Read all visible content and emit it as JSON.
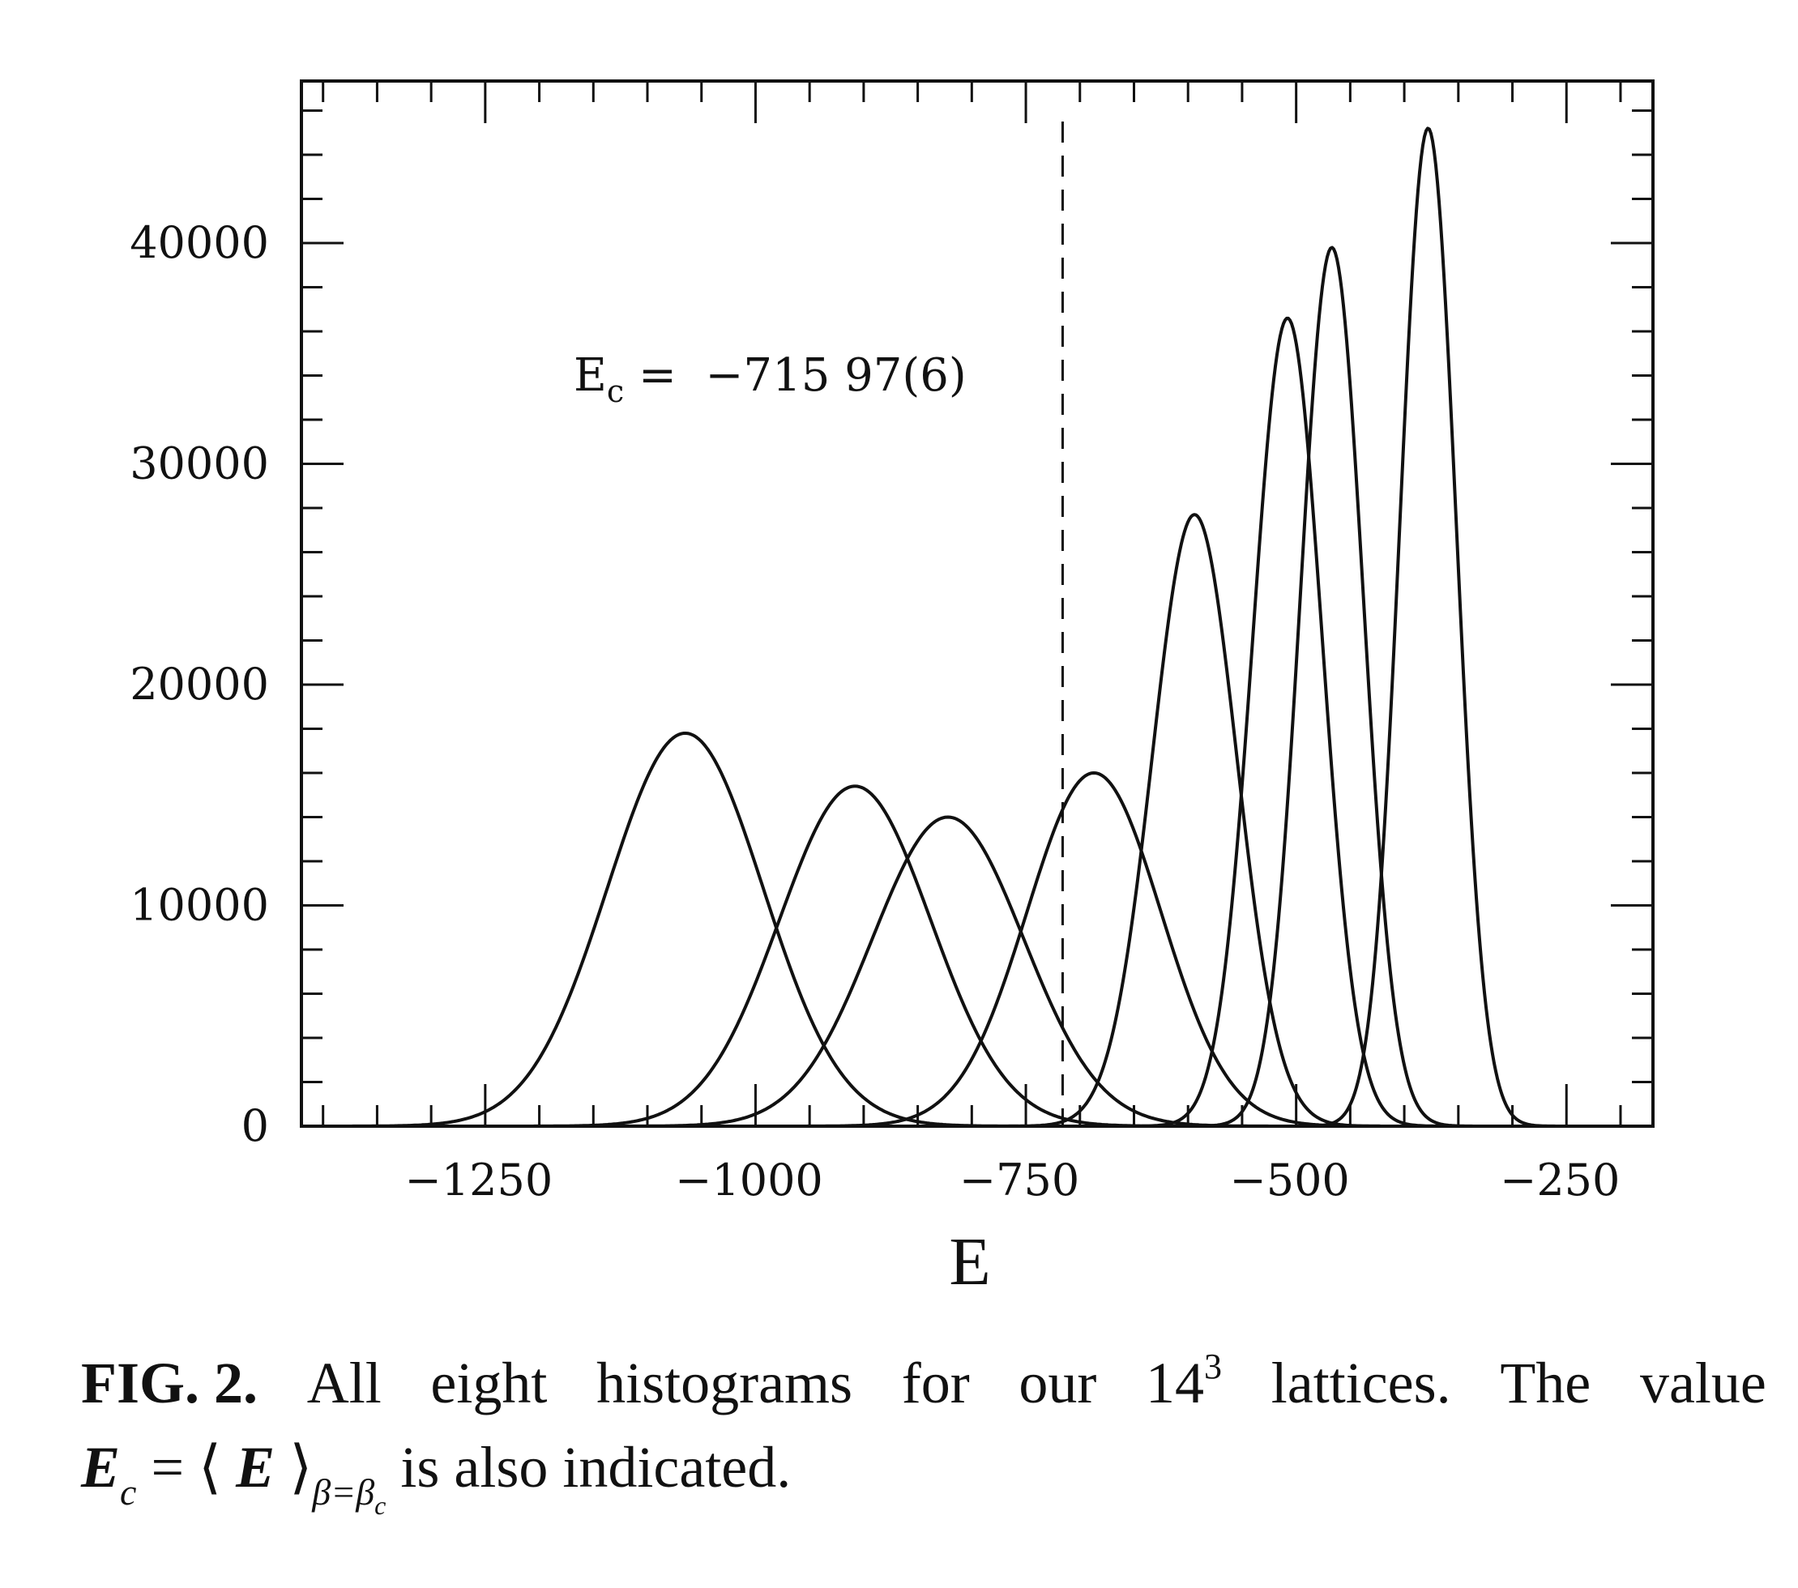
{
  "chart_data": {
    "type": "line",
    "xlabel": "E",
    "ylabel": "",
    "xlim": [
      -1420,
      -170
    ],
    "ylim": [
      0,
      46000
    ],
    "xticks": [
      -1250,
      -1000,
      -750,
      -500,
      -250
    ],
    "xtick_labels": [
      "−1250",
      "−1000",
      "−750",
      "−500",
      "−250"
    ],
    "yticks": [
      0,
      10000,
      20000,
      30000,
      40000
    ],
    "ytick_labels": [
      "0",
      "10000",
      "20000",
      "30000",
      "40000"
    ],
    "grid": false,
    "series": [
      {
        "peak_E": -1065,
        "peak_count": 17800,
        "sigma": 72
      },
      {
        "peak_E": -908,
        "peak_count": 15400,
        "sigma": 70
      },
      {
        "peak_E": -822,
        "peak_count": 14000,
        "sigma": 70
      },
      {
        "peak_E": -687,
        "peak_count": 16000,
        "sigma": 62
      },
      {
        "peak_E": -594,
        "peak_count": 27700,
        "sigma": 39
      },
      {
        "peak_E": -508,
        "peak_count": 36600,
        "sigma": 32
      },
      {
        "peak_E": -467,
        "peak_count": 39800,
        "sigma": 29
      },
      {
        "peak_E": -378,
        "peak_count": 45200,
        "sigma": 26
      }
    ],
    "vline": {
      "x": -715.97
    },
    "annotation": {
      "main": "E",
      "sub": "c",
      "rest": " =  −715 97(6)"
    }
  },
  "caption": {
    "line1_words": [
      "FIG. 2.",
      "All",
      "eight",
      "histograms",
      "for",
      "our",
      "14",
      "lattices.",
      "The",
      "value"
    ],
    "sup_exponent": "3",
    "line2_E": "E",
    "line2_sub_c": "c",
    "line2_eq": " = ⟨ ",
    "line2_E2": "E",
    "line2_close": " ⟩",
    "line2_sub_beta": "β=β",
    "line2_sub_c2": "c",
    "line2_rest": " is also indicated."
  }
}
